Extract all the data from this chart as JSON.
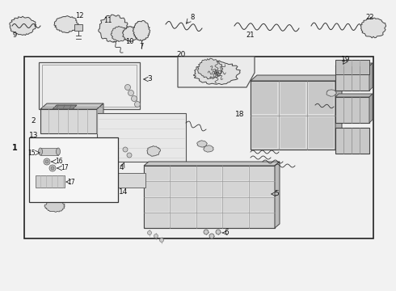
{
  "bg": "#f0f0f0",
  "lc": "#3a3a3a",
  "figsize": [
    4.9,
    3.6
  ],
  "dpi": 100
}
